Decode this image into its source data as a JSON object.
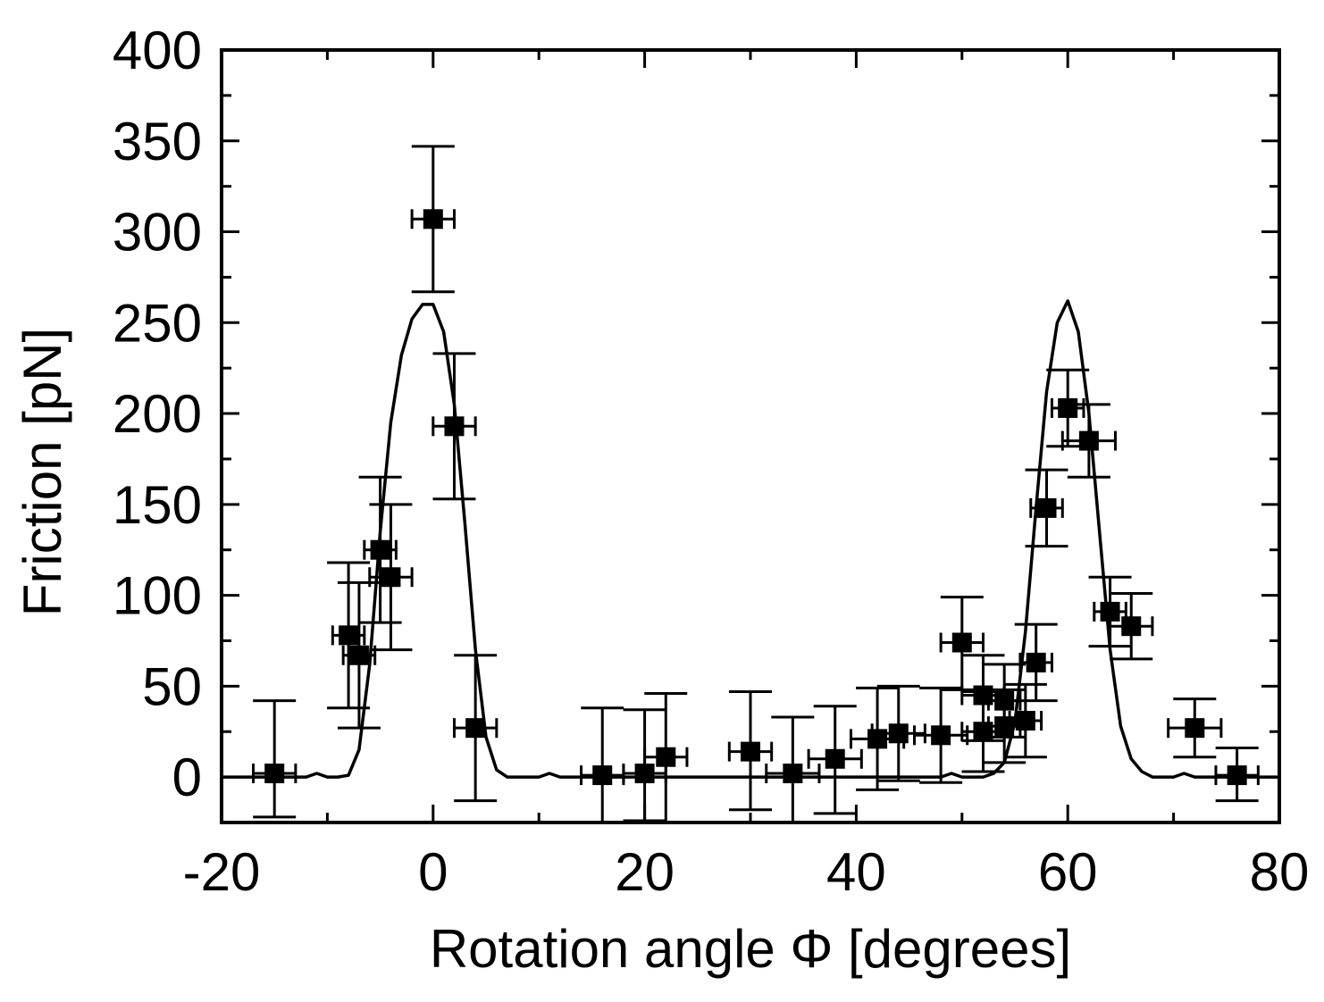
{
  "chart_data": {
    "type": "scatter",
    "title": "",
    "xlabel": "Rotation angle Φ [degrees]",
    "ylabel": "Friction [pN]",
    "xlim": [
      -20,
      80
    ],
    "ylim": [
      -25,
      400
    ],
    "xticks": [
      -20,
      0,
      20,
      40,
      60,
      80
    ],
    "xtick_labels": [
      "-20",
      "0",
      "20",
      "40",
      "60",
      "80"
    ],
    "yticks": [
      0,
      50,
      100,
      150,
      200,
      250,
      300,
      350,
      400
    ],
    "ytick_labels": [
      "0",
      "50",
      "100",
      "150",
      "200",
      "250",
      "300",
      "350",
      "400"
    ],
    "grid": false,
    "legend": "none",
    "marker_color": "#000000",
    "points": [
      {
        "x": -15,
        "y": 2,
        "xerr": 2,
        "yerr_lo": 24,
        "yerr_hi": 40
      },
      {
        "x": -8,
        "y": 78,
        "xerr": 1.5,
        "yerr_lo": 40,
        "yerr_hi": 40
      },
      {
        "x": -7,
        "y": 67,
        "xerr": 1.5,
        "yerr_lo": 40,
        "yerr_hi": 40
      },
      {
        "x": -5,
        "y": 125,
        "xerr": 1.5,
        "yerr_lo": 40,
        "yerr_hi": 40
      },
      {
        "x": -4,
        "y": 110,
        "xerr": 2,
        "yerr_lo": 40,
        "yerr_hi": 40
      },
      {
        "x": 0,
        "y": 307,
        "xerr": 2,
        "yerr_lo": 40,
        "yerr_hi": 40
      },
      {
        "x": 2,
        "y": 193,
        "xerr": 2,
        "yerr_lo": 40,
        "yerr_hi": 40
      },
      {
        "x": 4,
        "y": 27,
        "xerr": 2,
        "yerr_lo": 40,
        "yerr_hi": 40
      },
      {
        "x": 16,
        "y": 1,
        "xerr": 2,
        "yerr_lo": 26,
        "yerr_hi": 37
      },
      {
        "x": 20,
        "y": 2,
        "xerr": 2,
        "yerr_lo": 26,
        "yerr_hi": 35
      },
      {
        "x": 22,
        "y": 11,
        "xerr": 2,
        "yerr_lo": 36,
        "yerr_hi": 35
      },
      {
        "x": 30,
        "y": 14,
        "xerr": 2,
        "yerr_lo": 32,
        "yerr_hi": 33
      },
      {
        "x": 34,
        "y": 2,
        "xerr": 2.5,
        "yerr_lo": 27,
        "yerr_hi": 31
      },
      {
        "x": 38,
        "y": 10,
        "xerr": 2.5,
        "yerr_lo": 30,
        "yerr_hi": 29
      },
      {
        "x": 42,
        "y": 21,
        "xerr": 2.5,
        "yerr_lo": 28,
        "yerr_hi": 28
      },
      {
        "x": 44,
        "y": 24,
        "xerr": 2.5,
        "yerr_lo": 26,
        "yerr_hi": 26
      },
      {
        "x": 48,
        "y": 23,
        "xerr": 2.5,
        "yerr_lo": 26,
        "yerr_hi": 26
      },
      {
        "x": 50,
        "y": 74,
        "xerr": 2,
        "yerr_lo": 26,
        "yerr_hi": 25
      },
      {
        "x": 52,
        "y": 45,
        "xerr": 2,
        "yerr_lo": 25,
        "yerr_hi": 22
      },
      {
        "x": 52,
        "y": 25,
        "xerr": 2,
        "yerr_lo": 22,
        "yerr_hi": 22
      },
      {
        "x": 54,
        "y": 42,
        "xerr": 1.5,
        "yerr_lo": 20,
        "yerr_hi": 20
      },
      {
        "x": 54,
        "y": 28,
        "xerr": 1.5,
        "yerr_lo": 20,
        "yerr_hi": 20
      },
      {
        "x": 56,
        "y": 31,
        "xerr": 1.5,
        "yerr_lo": 20,
        "yerr_hi": 20
      },
      {
        "x": 57,
        "y": 63,
        "xerr": 1.5,
        "yerr_lo": 21,
        "yerr_hi": 21
      },
      {
        "x": 58,
        "y": 148,
        "xerr": 1.5,
        "yerr_lo": 21,
        "yerr_hi": 21
      },
      {
        "x": 60,
        "y": 203,
        "xerr": 1.5,
        "yerr_lo": 21,
        "yerr_hi": 21
      },
      {
        "x": 62,
        "y": 185,
        "xerr": 2.5,
        "yerr_lo": 20,
        "yerr_hi": 20
      },
      {
        "x": 64,
        "y": 91,
        "xerr": 1.5,
        "yerr_lo": 19,
        "yerr_hi": 19
      },
      {
        "x": 66,
        "y": 83,
        "xerr": 2,
        "yerr_lo": 18,
        "yerr_hi": 18
      },
      {
        "x": 72,
        "y": 27,
        "xerr": 2.5,
        "yerr_lo": 16,
        "yerr_hi": 16
      },
      {
        "x": 76,
        "y": 1,
        "xerr": 2,
        "yerr_lo": 14,
        "yerr_hi": 15
      }
    ],
    "fit_curve": {
      "x": [
        -20,
        -12,
        -11,
        -10,
        -9,
        -8,
        -7,
        -6,
        -5,
        -4,
        -3,
        -2,
        -1,
        0,
        1,
        2,
        3,
        4,
        5,
        6,
        7,
        10,
        11,
        12,
        20,
        40,
        46,
        48,
        49,
        50,
        51,
        52,
        53,
        54,
        55,
        56,
        57,
        58,
        59,
        60,
        61,
        62,
        63,
        64,
        65,
        66,
        67,
        68,
        69,
        70,
        71,
        72,
        73,
        80
      ],
      "y": [
        0,
        0,
        2,
        0,
        0,
        1,
        15,
        62,
        135,
        195,
        232,
        252,
        260,
        260,
        245,
        205,
        140,
        70,
        22,
        4,
        0,
        0,
        2,
        0,
        0,
        0,
        0,
        0,
        2,
        0,
        0,
        0,
        2,
        8,
        30,
        80,
        148,
        212,
        250,
        262,
        245,
        200,
        135,
        70,
        28,
        10,
        3,
        0,
        0,
        0,
        2,
        0,
        0,
        0
      ]
    }
  }
}
